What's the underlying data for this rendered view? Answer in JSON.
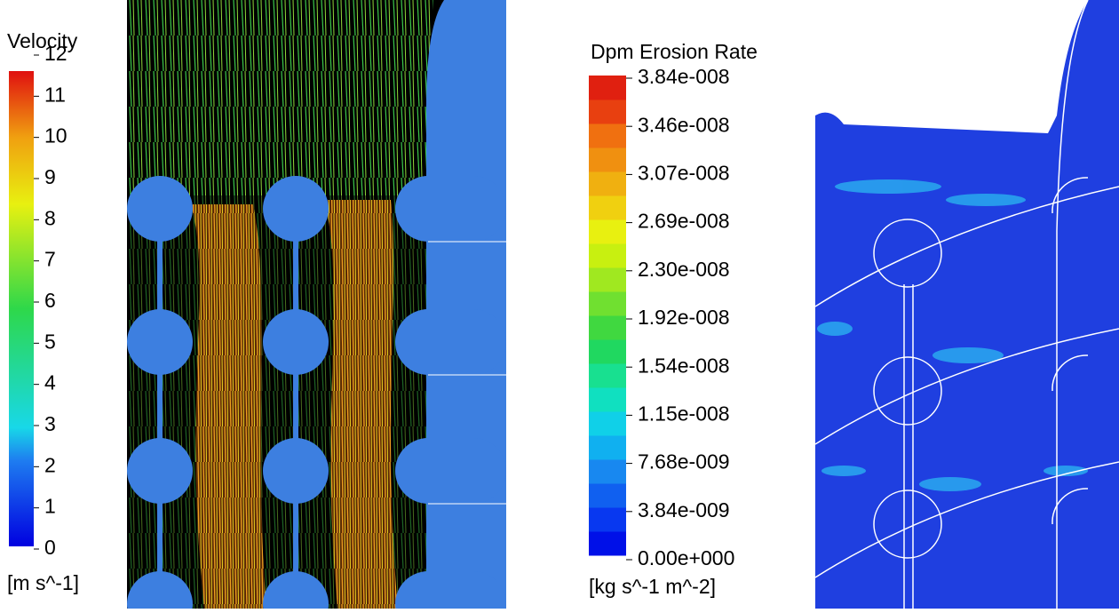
{
  "velocity_legend": {
    "title": "Velocity",
    "ticks": [
      "12",
      "11",
      "10",
      "9",
      "8",
      "7",
      "6",
      "5",
      "4",
      "3",
      "2",
      "1",
      "0"
    ],
    "unit": "[m s^-1]"
  },
  "erosion_legend": {
    "title": "Dpm Erosion Rate",
    "ticks": [
      "3.84e-008",
      "3.46e-008",
      "3.07e-008",
      "2.69e-008",
      "2.30e-008",
      "1.92e-008",
      "1.54e-008",
      "1.15e-008",
      "7.68e-009",
      "3.84e-009",
      "0.00e+000"
    ],
    "unit": "[kg s^-1 m^-2]"
  }
}
